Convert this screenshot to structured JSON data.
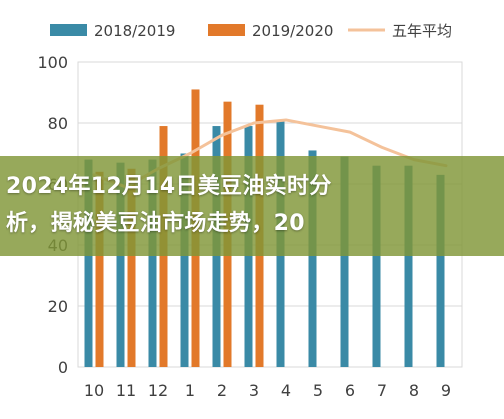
{
  "chart_data": {
    "type": "bar",
    "categories": [
      "10",
      "11",
      "12",
      "1",
      "2",
      "3",
      "4",
      "5",
      "6",
      "7",
      "8",
      "9"
    ],
    "series": [
      {
        "name": "2018/2019",
        "type": "bar",
        "color": "#3a8aa6",
        "values": [
          68,
          67,
          68,
          70,
          79,
          79,
          81,
          71,
          69,
          66,
          66,
          63
        ]
      },
      {
        "name": "2019/2020",
        "type": "bar",
        "color": "#e2792a",
        "values": [
          64,
          65,
          79,
          91,
          87,
          86,
          null,
          null,
          null,
          null,
          null,
          null
        ]
      },
      {
        "name": "五年平均",
        "type": "line",
        "color": "#f4c29a",
        "values": [
          63,
          59,
          65,
          70,
          76,
          80,
          81,
          79,
          77,
          72,
          68,
          66
        ]
      }
    ],
    "yticks": [
      0,
      20,
      40,
      60,
      80,
      100
    ],
    "ylim": [
      0,
      100
    ],
    "grid": true,
    "legend_position": "top"
  },
  "overlay": {
    "line1": "2024年12月14日美豆油实时分",
    "line2": "析，揭秘美豆油市场走势，20"
  }
}
